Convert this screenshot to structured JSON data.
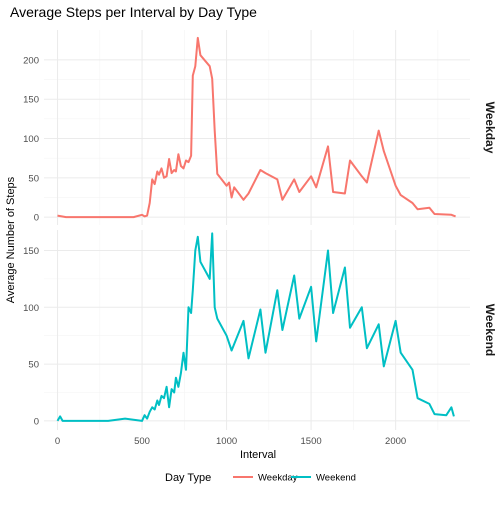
{
  "chart_data": {
    "type": "line",
    "title": "Average Steps per Interval by Day Type",
    "xlabel": "Interval",
    "ylabel": "Average Number of Steps",
    "x_ticks": [
      0,
      500,
      1000,
      1500,
      2000
    ],
    "xlim": [
      -80,
      2440
    ],
    "grid": true,
    "legend": {
      "title": "Day Type",
      "position": "bottom",
      "entries": [
        "Weekday",
        "Weekend"
      ]
    },
    "panels": [
      {
        "strip": "Weekday",
        "color": "#F8766D",
        "ylim": [
          -10,
          238
        ],
        "y_ticks": [
          0,
          50,
          100,
          150,
          200
        ],
        "x": [
          0,
          50,
          100,
          150,
          200,
          300,
          400,
          450,
          500,
          515,
          530,
          545,
          560,
          575,
          590,
          600,
          615,
          630,
          645,
          660,
          675,
          690,
          700,
          715,
          730,
          745,
          760,
          775,
          790,
          800,
          815,
          830,
          845,
          900,
          915,
          930,
          945,
          1000,
          1015,
          1030,
          1045,
          1100,
          1130,
          1200,
          1230,
          1300,
          1330,
          1400,
          1430,
          1500,
          1530,
          1600,
          1630,
          1700,
          1730,
          1800,
          1830,
          1900,
          1930,
          2000,
          2030,
          2100,
          2130,
          2200,
          2230,
          2330,
          2355
        ],
        "values": [
          2,
          0,
          0,
          0,
          0,
          0,
          0,
          0,
          3,
          1,
          2,
          18,
          48,
          42,
          58,
          54,
          62,
          50,
          52,
          74,
          56,
          60,
          58,
          80,
          65,
          62,
          72,
          70,
          78,
          180,
          192,
          228,
          206,
          192,
          176,
          110,
          55,
          40,
          44,
          25,
          38,
          22,
          30,
          60,
          56,
          48,
          22,
          48,
          32,
          52,
          38,
          90,
          32,
          30,
          72,
          52,
          44,
          110,
          84,
          40,
          28,
          18,
          10,
          12,
          4,
          3,
          1
        ]
      },
      {
        "strip": "Weekend",
        "color": "#00BFC4",
        "ylim": [
          -8,
          168
        ],
        "y_ticks": [
          0,
          50,
          100,
          150
        ],
        "x": [
          0,
          15,
          30,
          45,
          100,
          200,
          300,
          400,
          500,
          515,
          530,
          545,
          560,
          575,
          590,
          600,
          615,
          630,
          645,
          660,
          675,
          690,
          700,
          715,
          730,
          745,
          760,
          775,
          790,
          800,
          815,
          830,
          845,
          900,
          915,
          930,
          945,
          1000,
          1030,
          1100,
          1130,
          1200,
          1230,
          1300,
          1330,
          1400,
          1430,
          1500,
          1530,
          1600,
          1630,
          1700,
          1730,
          1800,
          1830,
          1900,
          1930,
          2000,
          2030,
          2100,
          2130,
          2200,
          2230,
          2300,
          2330,
          2345
        ],
        "values": [
          0,
          4,
          0,
          0,
          0,
          0,
          0,
          2,
          0,
          5,
          2,
          8,
          12,
          10,
          18,
          14,
          22,
          20,
          30,
          12,
          28,
          25,
          38,
          30,
          42,
          60,
          45,
          100,
          95,
          115,
          150,
          162,
          140,
          125,
          165,
          100,
          90,
          75,
          62,
          88,
          55,
          98,
          60,
          115,
          80,
          128,
          90,
          118,
          70,
          150,
          95,
          135,
          82,
          100,
          64,
          85,
          48,
          88,
          60,
          45,
          20,
          15,
          6,
          5,
          12,
          4
        ]
      }
    ]
  }
}
